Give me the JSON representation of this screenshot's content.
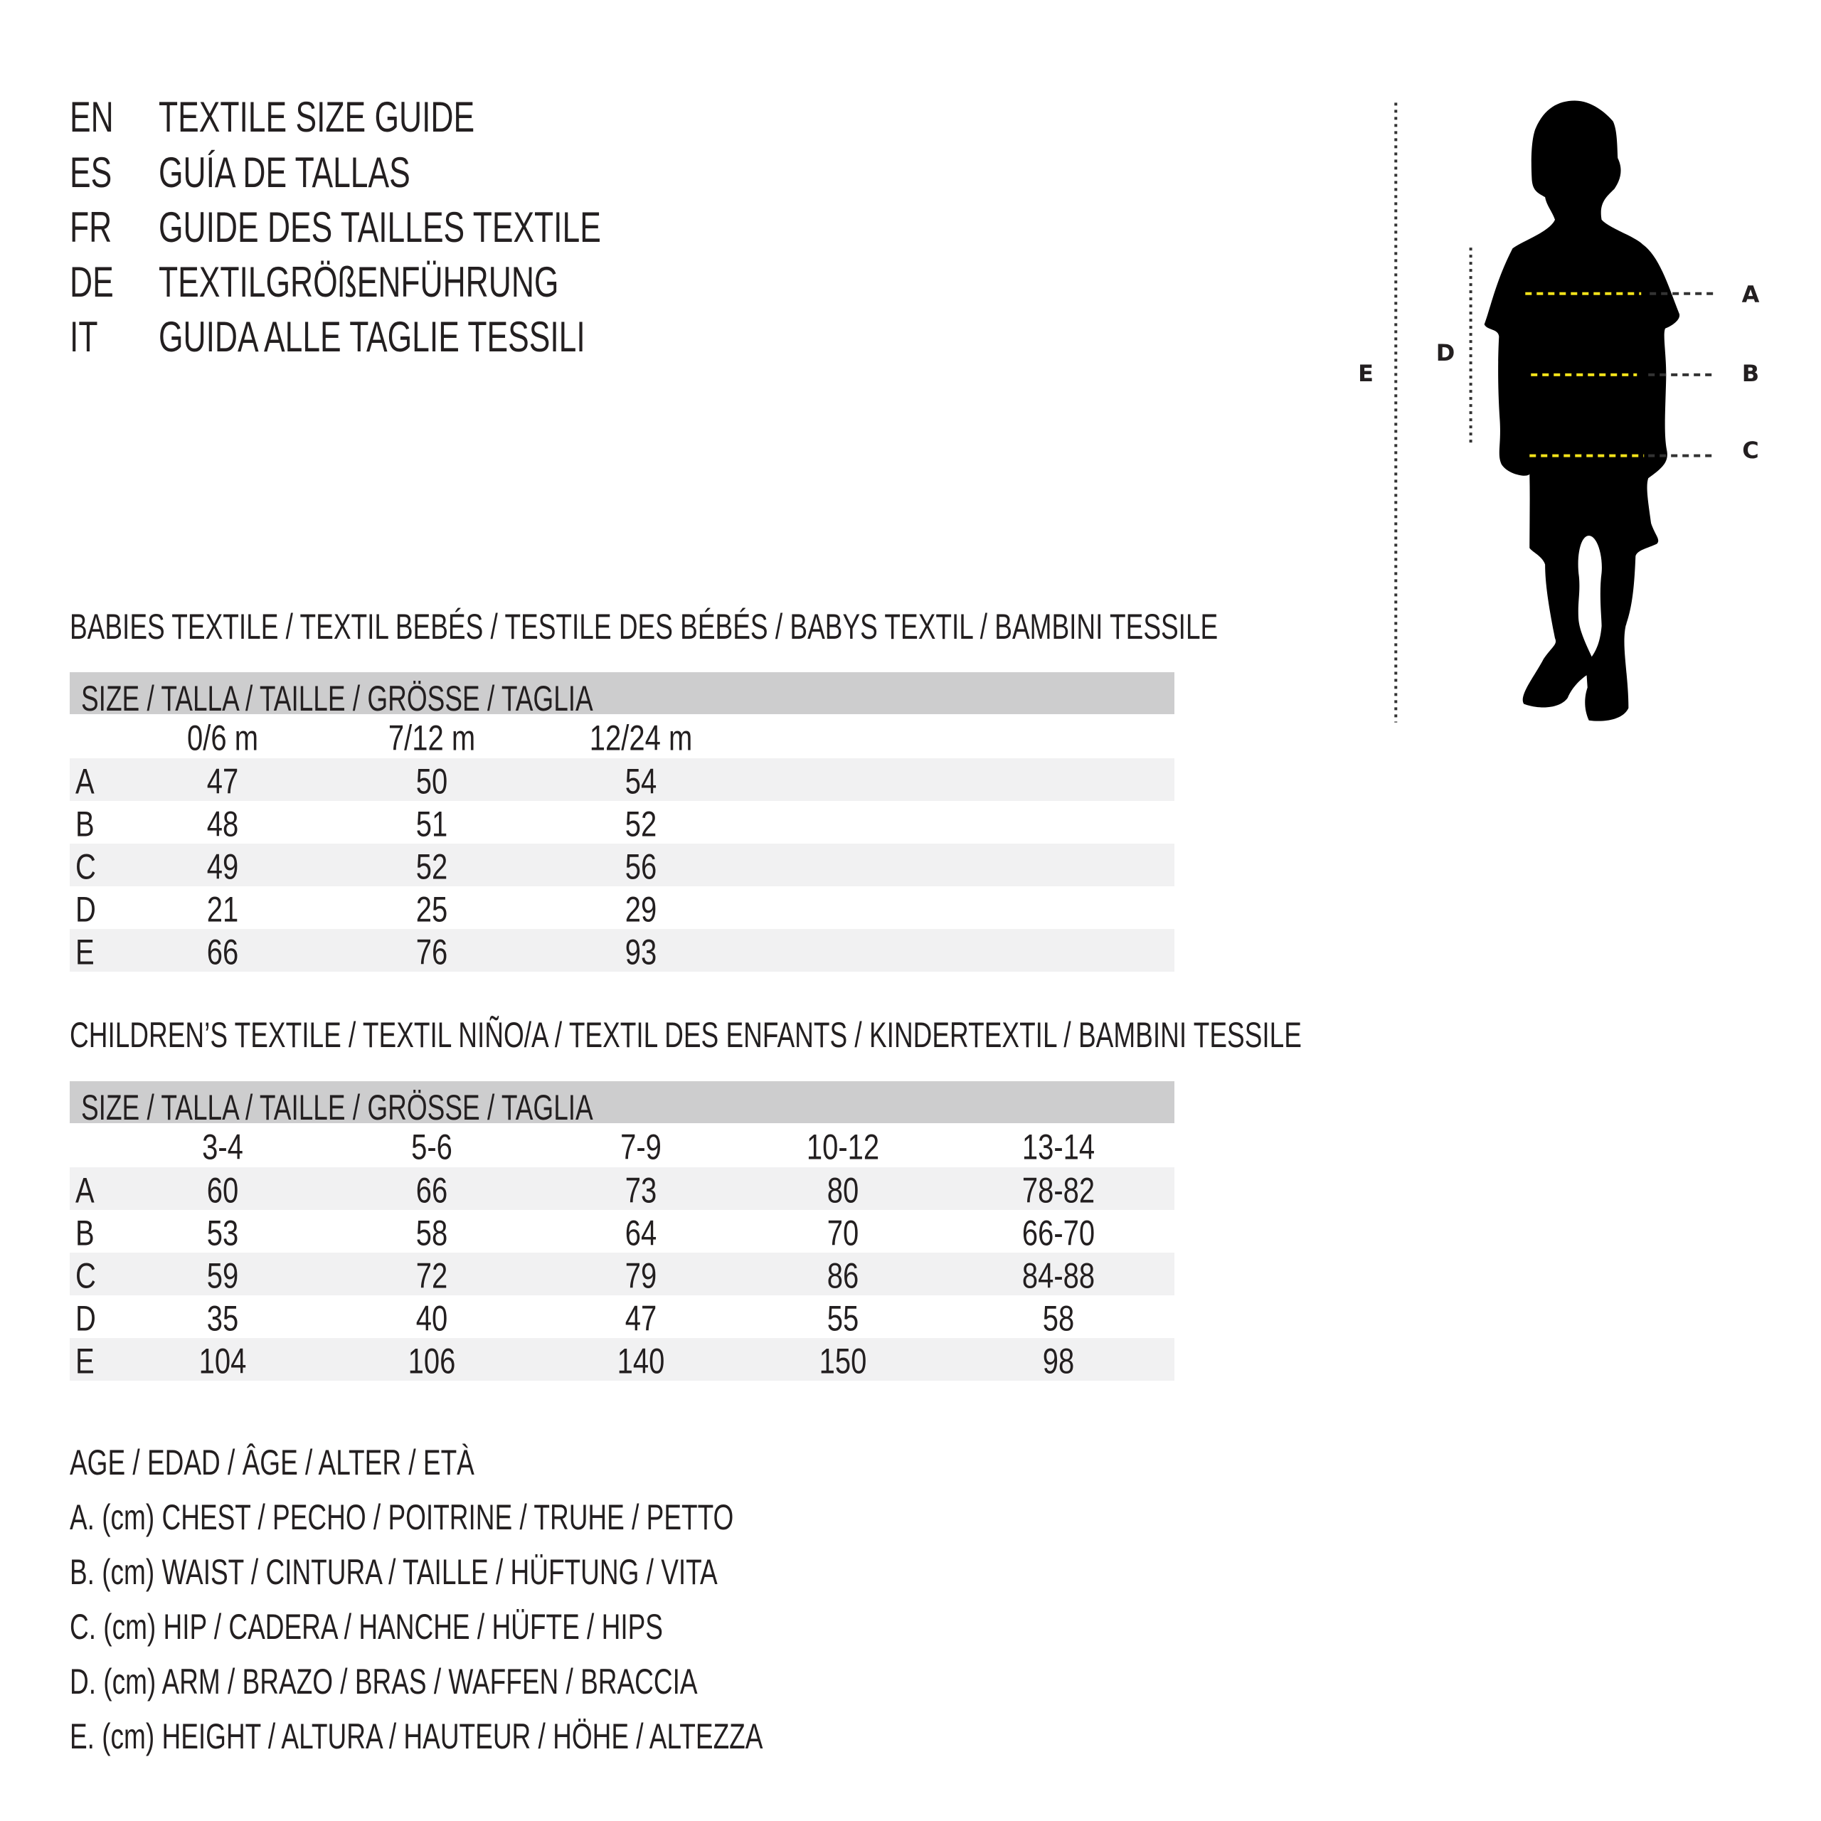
{
  "titles": [
    {
      "code": "EN",
      "text": "TEXTILE SIZE GUIDE"
    },
    {
      "code": "ES",
      "text": "GUÍA DE TALLAS"
    },
    {
      "code": "FR",
      "text": "GUIDE DES TAILLES TEXTILE"
    },
    {
      "code": "DE",
      "text": "TEXTILGRÖßENFÜHRUNG"
    },
    {
      "code": "IT",
      "text": "GUIDA ALLE TAGLIE TESSILI"
    }
  ],
  "babies": {
    "heading": "BABIES TEXTILE / TEXTIL BEBÉS / TESTILE DES BÉBÉS / BABYS TEXTIL / BAMBINI TESSILE",
    "size_label": "SIZE / TALLA / TAILLE / GRÖSSE / TAGLIA",
    "columns": [
      "0/6 m",
      "7/12 m",
      "12/24 m"
    ],
    "rows": [
      {
        "label": "A",
        "values": [
          "47",
          "50",
          "54"
        ]
      },
      {
        "label": "B",
        "values": [
          "48",
          "51",
          "52"
        ]
      },
      {
        "label": "C",
        "values": [
          "49",
          "52",
          "56"
        ]
      },
      {
        "label": "D",
        "values": [
          "21",
          "25",
          "29"
        ]
      },
      {
        "label": "E",
        "values": [
          "66",
          "76",
          "93"
        ]
      }
    ]
  },
  "children": {
    "heading": "CHILDREN’S TEXTILE / TEXTIL NIÑO/A / TEXTIL DES ENFANTS / KINDERTEXTIL / BAMBINI TESSILE",
    "size_label": "SIZE / TALLA / TAILLE / GRÖSSE / TAGLIA",
    "columns": [
      "3-4",
      "5-6",
      "7-9",
      "10-12",
      "13-14"
    ],
    "rows": [
      {
        "label": "A",
        "values": [
          "60",
          "66",
          "73",
          "80",
          "78-82"
        ]
      },
      {
        "label": "B",
        "values": [
          "53",
          "58",
          "64",
          "70",
          "66-70"
        ]
      },
      {
        "label": "C",
        "values": [
          "59",
          "72",
          "79",
          "86",
          "84-88"
        ]
      },
      {
        "label": "D",
        "values": [
          "35",
          "40",
          "47",
          "55",
          "58"
        ]
      },
      {
        "label": "E",
        "values": [
          "104",
          "106",
          "140",
          "150",
          "98"
        ]
      }
    ]
  },
  "legend": [
    "AGE / EDAD / ÂGE / ALTER / ETÀ",
    "A. (cm) CHEST / PECHO / POITRINE / TRUHE / PETTO",
    "B. (cm) WAIST / CINTURA / TAILLE / HÜFTUNG / VITA",
    "C. (cm) HIP / CADERA / HANCHE / HÜFTE / HIPS",
    "D. (cm) ARM / BRAZO / BRAS / WAFFEN / BRACCIA",
    "E. (cm) HEIGHT / ALTURA / HAUTEUR / HÖHE / ALTEZZA"
  ],
  "figure": {
    "labels": {
      "A": "A",
      "B": "B",
      "C": "C",
      "D": "D",
      "E": "E"
    },
    "colors": {
      "silhouette": "#000000",
      "measure_line": "#f2e21a",
      "guide_line": "#333333",
      "header_bar": "#cdcdce",
      "row_shade": "#f1f1f2"
    }
  }
}
